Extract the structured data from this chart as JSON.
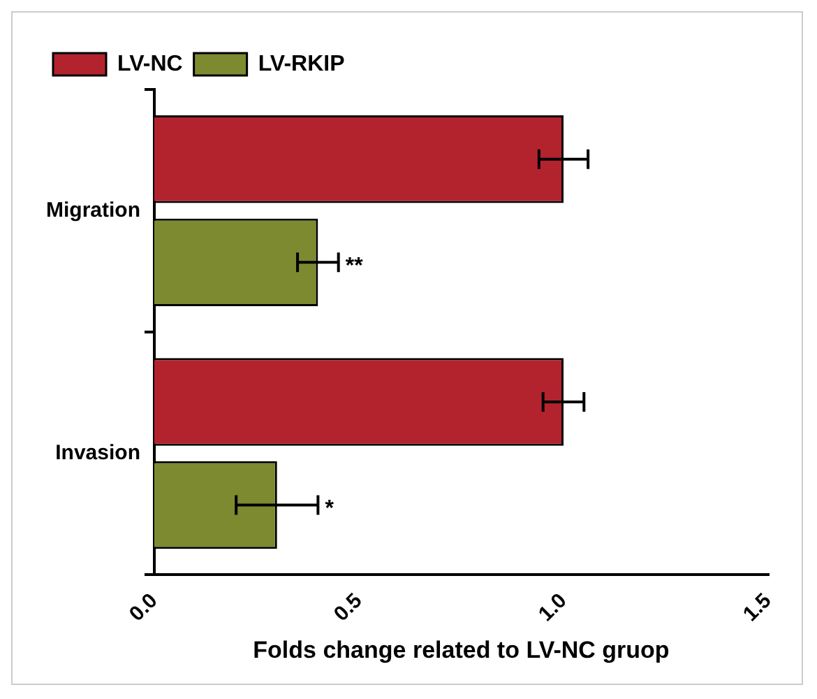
{
  "chart_data": {
    "type": "bar",
    "orientation": "horizontal",
    "xlabel": "Folds change related to LV-NC gruop",
    "categories": [
      "Migration",
      "Invasion"
    ],
    "series": [
      {
        "name": "LV-NC",
        "color": "#b3232e",
        "values": [
          1.0,
          1.0
        ],
        "errors": [
          0.06,
          0.05
        ]
      },
      {
        "name": "LV-RKIP",
        "color": "#7e8a2f",
        "values": [
          0.4,
          0.3
        ],
        "errors": [
          0.05,
          0.1
        ]
      }
    ],
    "xlim": [
      0,
      1.5
    ],
    "xticks": [
      {
        "value": 0,
        "label": "0.0"
      },
      {
        "value": 0.5,
        "label": "0.5"
      },
      {
        "value": 1,
        "label": "1.0"
      },
      {
        "value": 1.5,
        "label": "1.5"
      }
    ],
    "grid": false,
    "legend": "top left",
    "annotations": [
      "**",
      "*"
    ]
  }
}
